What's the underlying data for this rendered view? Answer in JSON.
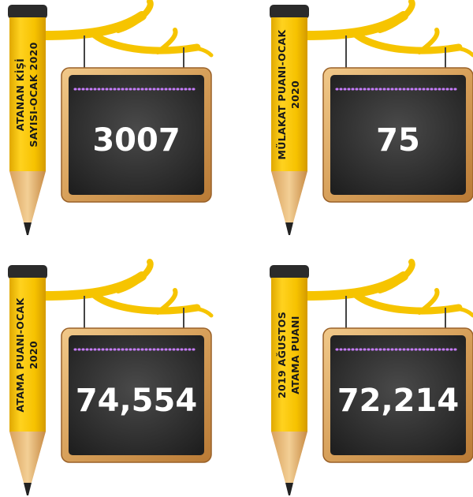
{
  "cards": [
    {
      "label_lines": [
        "ATANAN KİŞİ",
        "SAYISI-OCAK 2020"
      ],
      "value": "3007"
    },
    {
      "label_lines": [
        "MÜLAKAT PUANI-OCAK",
        "2020"
      ],
      "value": "75"
    },
    {
      "label_lines": [
        "ATAMA PUANI-OCAK",
        "2020"
      ],
      "value": "74,554"
    },
    {
      "label_lines": [
        "2019 AĞUSTOS",
        "ATAMA PUANI"
      ],
      "value": "72,214"
    }
  ]
}
